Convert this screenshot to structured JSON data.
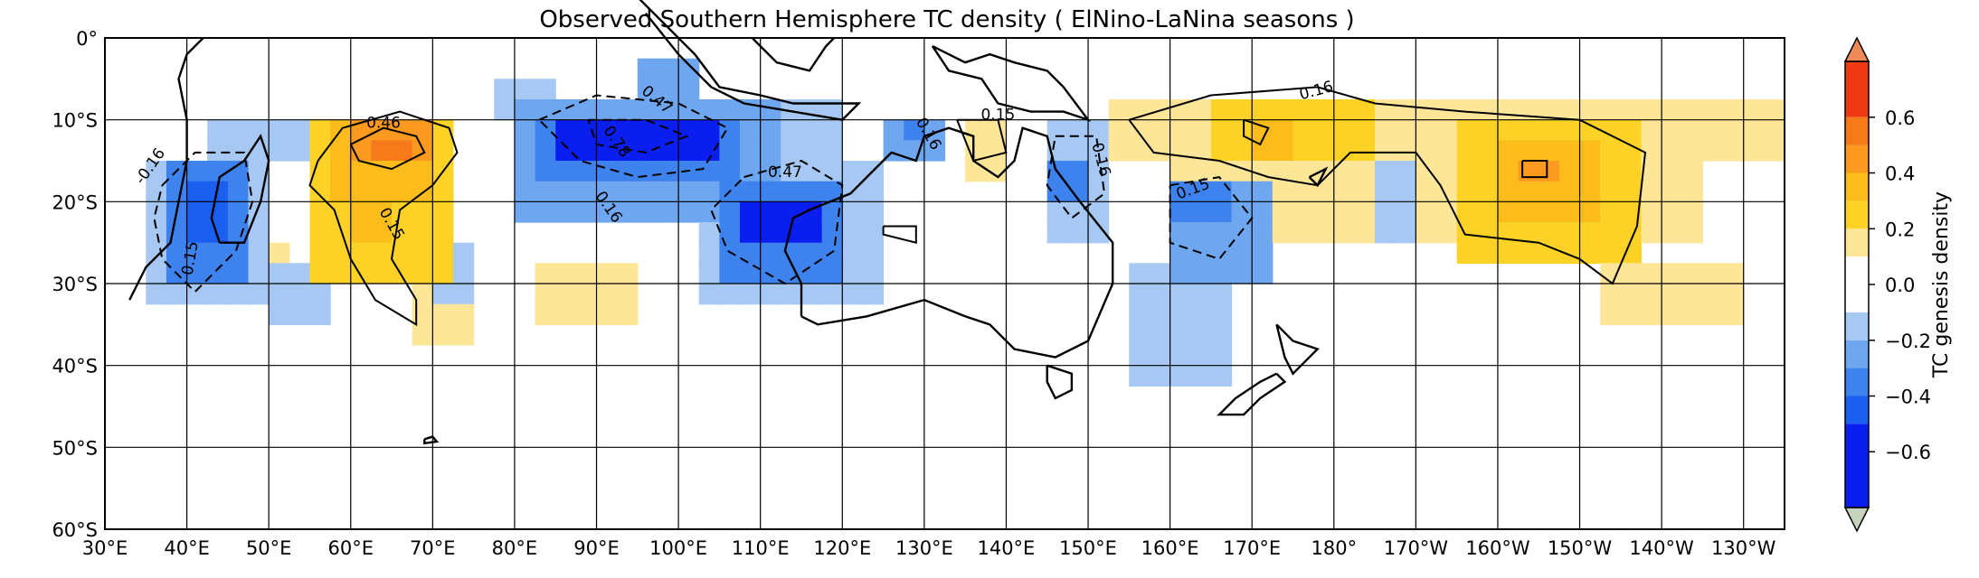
{
  "chart_data": {
    "type": "heatmap",
    "title": "Observed Southern Hemisphere TC density ( ElNino-LaNina seasons )",
    "colorbar_label": "TC genesis density",
    "colorbar_ticks": [
      "0.6",
      "0.4",
      "0.2",
      "0.0",
      "−0.2",
      "−0.4",
      "−0.6"
    ],
    "colorbar_levels": [
      {
        "range": [
          0.6,
          0.8
        ],
        "color": "#ee3a12"
      },
      {
        "range": [
          0.5,
          0.6
        ],
        "color": "#f77a1a"
      },
      {
        "range": [
          0.4,
          0.5
        ],
        "color": "#fb9a1e"
      },
      {
        "range": [
          0.3,
          0.4
        ],
        "color": "#fcbd1c"
      },
      {
        "range": [
          0.2,
          0.3
        ],
        "color": "#fdd227"
      },
      {
        "range": [
          0.1,
          0.2
        ],
        "color": "#fee699"
      },
      {
        "range": [
          -0.1,
          0.1
        ],
        "color": "#ffffff"
      },
      {
        "range": [
          -0.2,
          -0.1
        ],
        "color": "#a6c8f3"
      },
      {
        "range": [
          -0.3,
          -0.2
        ],
        "color": "#6ea6ef"
      },
      {
        "range": [
          -0.4,
          -0.3
        ],
        "color": "#3e82ee"
      },
      {
        "range": [
          -0.5,
          -0.4
        ],
        "color": "#1a5ff0"
      },
      {
        "range": [
          -0.8,
          -0.5
        ],
        "color": "#0a1ef0"
      }
    ],
    "xlim": [
      30,
      235
    ],
    "ylim": [
      -60,
      0
    ],
    "xtick_labels": [
      "30°E",
      "40°E",
      "50°E",
      "60°E",
      "70°E",
      "80°E",
      "90°E",
      "100°E",
      "110°E",
      "120°E",
      "130°E",
      "140°E",
      "150°E",
      "160°E",
      "170°E",
      "180°",
      "170°W",
      "160°W",
      "150°W",
      "140°W",
      "130°W"
    ],
    "ytick_labels": [
      "0°",
      "10°S",
      "20°S",
      "30°S",
      "40°S",
      "50°S",
      "60°S"
    ],
    "grid": true,
    "contour_labels": [
      "0.46",
      "0.15",
      "-0.16",
      "0.15",
      "0.47",
      "0.78",
      "0.16",
      "0.47",
      "0.16",
      "0.15",
      "0.16",
      "0.15",
      "0.16"
    ],
    "blobs": [
      {
        "lon0": 36,
        "lon1": 49,
        "lat0": -14,
        "lat1": -33,
        "v": -0.18
      },
      {
        "lon0": 37,
        "lon1": 47,
        "lat0": -16,
        "lat1": -29,
        "v": -0.32
      },
      {
        "lon0": 40,
        "lon1": 46,
        "lat0": -18,
        "lat1": -24,
        "v": -0.45
      },
      {
        "lon0": 42,
        "lon1": 55,
        "lat0": -9,
        "lat1": -14,
        "v": -0.16
      },
      {
        "lon0": 50,
        "lon1": 57,
        "lat0": -28,
        "lat1": -35,
        "v": -0.16
      },
      {
        "lon0": 54,
        "lon1": 73,
        "lat0": -9,
        "lat1": -30,
        "v": 0.22
      },
      {
        "lon0": 57,
        "lon1": 71,
        "lat0": -10,
        "lat1": -20,
        "v": 0.3
      },
      {
        "lon0": 60,
        "lon1": 69,
        "lat0": -11,
        "lat1": -16,
        "v": 0.45
      },
      {
        "lon0": 62,
        "lon1": 67,
        "lat0": -12,
        "lat1": -14,
        "v": 0.55
      },
      {
        "lon0": 60,
        "lon1": 66,
        "lat0": -20,
        "lat1": -26,
        "v": 0.35
      },
      {
        "lon0": 67,
        "lon1": 76,
        "lat0": -30,
        "lat1": -37,
        "v": 0.12
      },
      {
        "lon0": 46,
        "lon1": 53,
        "lat0": -25,
        "lat1": -30,
        "v": 0.15
      },
      {
        "lon0": 70,
        "lon1": 75,
        "lat0": -25,
        "lat1": -33,
        "v": -0.15
      },
      {
        "lon0": 82,
        "lon1": 95,
        "lat0": -27,
        "lat1": -35,
        "v": 0.12
      },
      {
        "lon0": 77,
        "lon1": 84,
        "lat0": -4,
        "lat1": -9,
        "v": -0.15
      },
      {
        "lon0": 80,
        "lon1": 113,
        "lat0": -8,
        "lat1": -22,
        "v": -0.22
      },
      {
        "lon0": 82,
        "lon1": 108,
        "lat0": -9,
        "lat1": -17,
        "v": -0.38
      },
      {
        "lon0": 86,
        "lon1": 104,
        "lat0": -11,
        "lat1": -15,
        "v": -0.55
      },
      {
        "lon0": 94,
        "lon1": 103,
        "lat0": -3,
        "lat1": -9,
        "v": -0.22
      },
      {
        "lon0": 103,
        "lon1": 124,
        "lat0": -15,
        "lat1": -33,
        "v": -0.2
      },
      {
        "lon0": 105,
        "lon1": 120,
        "lat0": -17,
        "lat1": -29,
        "v": -0.36
      },
      {
        "lon0": 108,
        "lon1": 117,
        "lat0": -19,
        "lat1": -26,
        "v": -0.52
      },
      {
        "lon0": 112,
        "lon1": 121,
        "lat0": -7,
        "lat1": -14,
        "v": -0.15
      },
      {
        "lon0": 125,
        "lon1": 132,
        "lat0": -9,
        "lat1": -16,
        "v": -0.22
      },
      {
        "lon0": 127,
        "lon1": 130,
        "lat0": -10,
        "lat1": -13,
        "v": -0.35
      },
      {
        "lon0": 134,
        "lon1": 141,
        "lat0": -10,
        "lat1": -18,
        "v": 0.18
      },
      {
        "lon0": 144,
        "lon1": 152,
        "lat0": -11,
        "lat1": -24,
        "v": -0.2
      },
      {
        "lon0": 146,
        "lon1": 151,
        "lat0": -14,
        "lat1": -19,
        "v": -0.38
      },
      {
        "lon0": 155,
        "lon1": 167,
        "lat0": -28,
        "lat1": -43,
        "v": -0.17
      },
      {
        "lon0": 160,
        "lon1": 172,
        "lat0": -17,
        "lat1": -29,
        "v": -0.22
      },
      {
        "lon0": 161,
        "lon1": 167,
        "lat0": -18,
        "lat1": -22,
        "v": -0.38
      },
      {
        "lon0": 153,
        "lon1": 235,
        "lat0": -7,
        "lat1": -14,
        "v": 0.15
      },
      {
        "lon0": 160,
        "lon1": 225,
        "lat0": -8,
        "lat1": -24,
        "v": 0.13
      },
      {
        "lon0": 165,
        "lon1": 185,
        "lat0": -8,
        "lat1": -16,
        "v": 0.23
      },
      {
        "lon0": 169,
        "lon1": 174,
        "lat0": -10,
        "lat1": -14,
        "v": 0.35
      },
      {
        "lon0": 196,
        "lon1": 218,
        "lat0": -10,
        "lat1": -27,
        "v": 0.22
      },
      {
        "lon0": 201,
        "lon1": 212,
        "lat0": -12,
        "lat1": -22,
        "v": 0.32
      },
      {
        "lon0": 202,
        "lon1": 207,
        "lat0": -14,
        "lat1": -18,
        "v": 0.45
      },
      {
        "lon0": 212,
        "lon1": 230,
        "lat0": -27,
        "lat1": -35,
        "v": 0.13
      },
      {
        "lon0": 184,
        "lon1": 189,
        "lat0": -15,
        "lat1": -25,
        "v": -0.15
      }
    ]
  }
}
